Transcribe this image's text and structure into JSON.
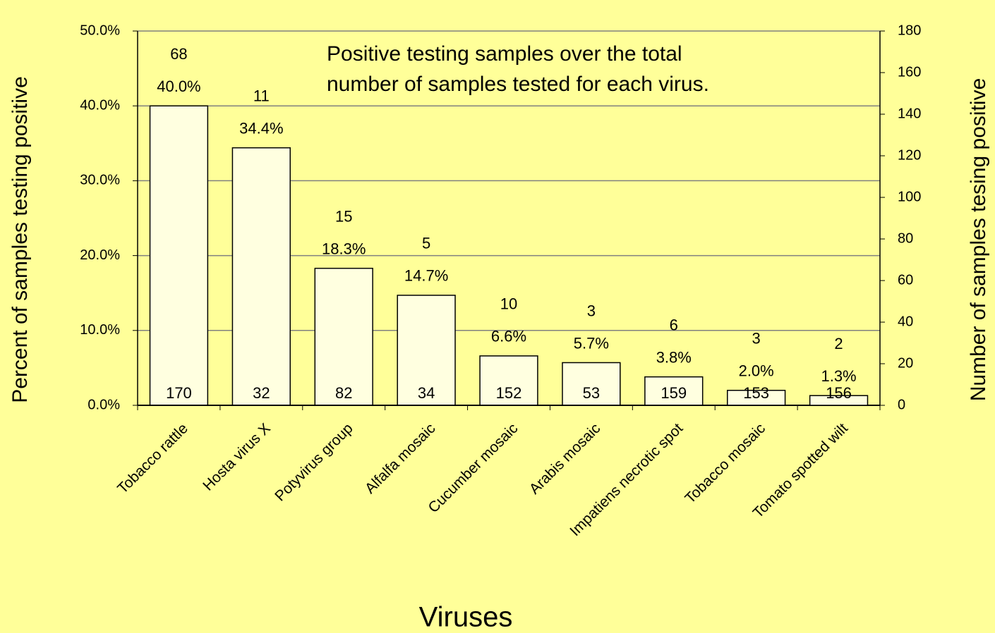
{
  "chart_data": {
    "type": "bar",
    "annotation": [
      "Positive testing samples over the total",
      "number of samples tested for each virus."
    ],
    "x_label": "Viruses",
    "y_label": "Percent of samples testing positive",
    "y2_label": "Number of samples tesing positive",
    "categories": [
      "Tobacco rattle",
      "Hosta virus X",
      "Potyvirus group",
      "Alfalfa mosaic",
      "Cucumber mosaic",
      "Arabis mosaic",
      "Impatiens necrotic spot",
      "Tobacco mosaic",
      "Tomato spotted wilt"
    ],
    "values": [
      40.0,
      34.4,
      18.3,
      14.7,
      6.6,
      5.7,
      3.8,
      2.0,
      1.3
    ],
    "value_labels": [
      "40.0%",
      "34.4%",
      "18.3%",
      "14.7%",
      "6.6%",
      "5.7%",
      "3.8%",
      "2.0%",
      "1.3%"
    ],
    "positive": [
      68,
      11,
      15,
      5,
      10,
      3,
      6,
      3,
      2
    ],
    "tested": [
      170,
      32,
      82,
      34,
      152,
      53,
      159,
      153,
      156
    ],
    "color": "#ffffe0",
    "ylim": [
      0,
      50
    ],
    "yticks": [
      {
        "value": 0,
        "label": "0.0%"
      },
      {
        "value": 10,
        "label": "10.0%"
      },
      {
        "value": 20,
        "label": "20.0%"
      },
      {
        "value": 30,
        "label": "30.0%"
      },
      {
        "value": 40,
        "label": "40.0%"
      },
      {
        "value": 50,
        "label": "50.0%"
      }
    ],
    "y2lim": [
      0,
      180
    ],
    "y2ticks": [
      0,
      20,
      40,
      60,
      80,
      100,
      120,
      140,
      160,
      180
    ],
    "grid": true
  }
}
